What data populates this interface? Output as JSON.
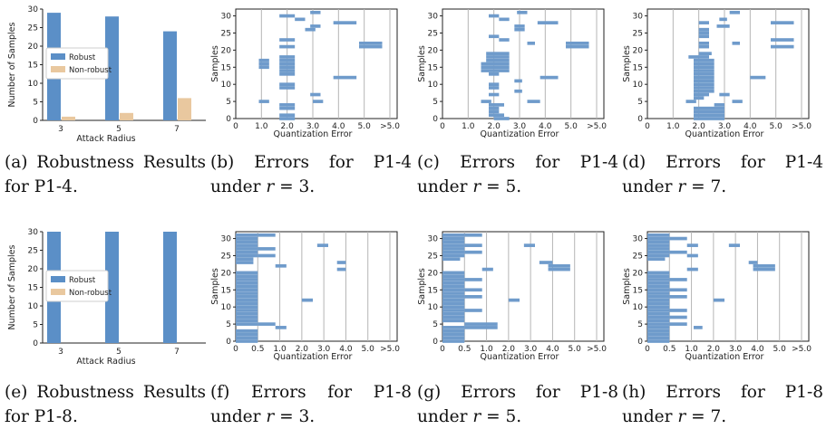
{
  "colors": {
    "robust": "#5b8fc7",
    "nonrobust": "#e9c89f",
    "error_bar": "#6f9bcb",
    "grid": "#b5b5b5",
    "axis": "#222222"
  },
  "captions": [
    {
      "main": "(a) Robustness Results for P1-4.",
      "var": "",
      "tail": ""
    },
    {
      "main": "(b) Errors for P1-4 under ",
      "var": "r",
      "tail": " = 3."
    },
    {
      "main": "(c) Errors for P1-4 under ",
      "var": "r",
      "tail": " = 5."
    },
    {
      "main": "(d) Errors for P1-4 under ",
      "var": "r",
      "tail": " = 7."
    },
    {
      "main": "(e) Robustness Results for P1-8.",
      "var": "",
      "tail": ""
    },
    {
      "main": "(f) Errors for P1-8 under ",
      "var": "r",
      "tail": " = 3."
    },
    {
      "main": "(g) Errors for P1-8 under ",
      "var": "r",
      "tail": " = 5."
    },
    {
      "main": "(h) Errors for P1-8 under ",
      "var": "r",
      "tail": " = 7."
    }
  ],
  "chart_data": [
    {
      "type": "bar",
      "ylabel": "Number of Samples",
      "xlabel": "Attack Radius",
      "categories": [
        "3",
        "5",
        "7"
      ],
      "ylim": [
        0,
        30
      ],
      "yticks": [
        0,
        5,
        10,
        15,
        20,
        25,
        30
      ],
      "legend": "center-left",
      "series": [
        {
          "name": "Robust",
          "values": [
            29,
            28,
            24
          ]
        },
        {
          "name": "Non-robust",
          "values": [
            1,
            2,
            6
          ]
        }
      ]
    },
    {
      "type": "bar",
      "orientation": "horizontal",
      "xlabel": "Quantization Error",
      "ylabel": "Samples",
      "xticks": [
        "0",
        "1.0",
        "2.0",
        "3.0",
        "4.0",
        "5.0",
        ">5.0"
      ],
      "ylim": [
        0,
        32
      ],
      "yticks": [
        0,
        5,
        10,
        15,
        20,
        25,
        30
      ],
      "segments": [
        [
          1.7,
          2.3,
          30
        ],
        [
          2.9,
          3.3,
          31
        ],
        [
          2.3,
          2.7,
          29
        ],
        [
          2.9,
          3.3,
          27
        ],
        [
          2.7,
          3.1,
          26
        ],
        [
          3.8,
          4.7,
          28
        ],
        [
          1.7,
          2.3,
          23
        ],
        [
          4.8,
          5.7,
          22
        ],
        [
          4.8,
          5.7,
          21
        ],
        [
          1.7,
          2.3,
          21
        ],
        [
          1.7,
          2.3,
          18
        ],
        [
          0.9,
          1.3,
          17
        ],
        [
          1.7,
          2.3,
          17
        ],
        [
          0.9,
          1.3,
          16
        ],
        [
          1.7,
          2.3,
          16
        ],
        [
          0.9,
          1.3,
          15
        ],
        [
          1.7,
          2.3,
          15
        ],
        [
          1.7,
          2.3,
          14
        ],
        [
          1.7,
          2.3,
          13
        ],
        [
          3.8,
          4.7,
          12
        ],
        [
          1.7,
          2.3,
          10
        ],
        [
          1.7,
          2.3,
          9
        ],
        [
          2.9,
          3.3,
          7
        ],
        [
          0.9,
          1.3,
          5
        ],
        [
          3.0,
          3.4,
          5
        ],
        [
          1.7,
          2.3,
          4
        ],
        [
          1.7,
          2.3,
          3
        ],
        [
          1.7,
          2.3,
          1
        ],
        [
          1.7,
          2.3,
          0
        ]
      ]
    },
    {
      "type": "bar",
      "orientation": "horizontal",
      "xlabel": "Quantization Error",
      "ylabel": "Samples",
      "xticks": [
        "0",
        "1.0",
        "2.0",
        "3.0",
        "4.0",
        "5.0",
        ">5.0"
      ],
      "ylim": [
        0,
        32
      ],
      "yticks": [
        0,
        5,
        10,
        15,
        20,
        25,
        30
      ],
      "segments": [
        [
          1.8,
          2.2,
          30
        ],
        [
          2.9,
          3.3,
          31
        ],
        [
          2.2,
          2.6,
          29
        ],
        [
          2.8,
          3.2,
          27
        ],
        [
          2.8,
          3.2,
          26
        ],
        [
          3.7,
          4.5,
          28
        ],
        [
          1.8,
          2.2,
          24
        ],
        [
          2.2,
          2.6,
          23
        ],
        [
          4.8,
          5.7,
          22
        ],
        [
          4.8,
          5.7,
          21
        ],
        [
          3.3,
          3.6,
          22
        ],
        [
          1.7,
          2.1,
          19
        ],
        [
          2.1,
          2.6,
          19
        ],
        [
          1.7,
          2.6,
          18
        ],
        [
          1.7,
          2.6,
          17
        ],
        [
          1.5,
          2.6,
          16
        ],
        [
          1.5,
          2.6,
          15
        ],
        [
          1.5,
          2.6,
          14
        ],
        [
          1.8,
          2.2,
          13
        ],
        [
          3.8,
          4.5,
          12
        ],
        [
          2.8,
          3.1,
          11
        ],
        [
          1.8,
          2.2,
          10
        ],
        [
          1.8,
          2.2,
          9
        ],
        [
          2.8,
          3.1,
          8
        ],
        [
          1.8,
          2.2,
          7
        ],
        [
          1.5,
          1.9,
          5
        ],
        [
          3.3,
          3.8,
          5
        ],
        [
          1.8,
          2.4,
          4
        ],
        [
          1.8,
          2.2,
          3
        ],
        [
          1.8,
          2.2,
          2
        ],
        [
          1.8,
          2.4,
          1
        ],
        [
          2.0,
          2.6,
          0
        ]
      ]
    },
    {
      "type": "bar",
      "orientation": "horizontal",
      "xlabel": "Quantization Error",
      "ylabel": "Samples",
      "xticks": [
        "0",
        "1.0",
        "2.0",
        "3.0",
        "4.0",
        "5.0",
        ">5.0"
      ],
      "ylim": [
        0,
        32
      ],
      "yticks": [
        0,
        5,
        10,
        15,
        20,
        25,
        30
      ],
      "segments": [
        [
          3.2,
          3.6,
          31
        ],
        [
          2.8,
          3.1,
          29
        ],
        [
          2.7,
          3.2,
          27
        ],
        [
          2.0,
          2.4,
          28
        ],
        [
          2.0,
          2.4,
          26
        ],
        [
          4.8,
          5.7,
          28
        ],
        [
          2.0,
          2.4,
          25
        ],
        [
          2.0,
          2.4,
          24
        ],
        [
          4.8,
          5.7,
          23
        ],
        [
          4.8,
          5.7,
          21
        ],
        [
          3.3,
          3.6,
          22
        ],
        [
          2.0,
          2.4,
          22
        ],
        [
          2.0,
          2.4,
          21
        ],
        [
          2.0,
          2.5,
          19
        ],
        [
          1.6,
          2.4,
          18
        ],
        [
          1.8,
          2.6,
          17
        ],
        [
          1.8,
          2.6,
          16
        ],
        [
          1.8,
          2.6,
          15
        ],
        [
          1.8,
          2.6,
          14
        ],
        [
          1.8,
          2.6,
          13
        ],
        [
          1.8,
          2.6,
          12
        ],
        [
          4.0,
          4.6,
          12
        ],
        [
          1.8,
          2.6,
          11
        ],
        [
          1.8,
          2.6,
          10
        ],
        [
          1.8,
          2.6,
          9
        ],
        [
          1.8,
          2.6,
          8
        ],
        [
          2.8,
          3.2,
          7
        ],
        [
          1.8,
          2.4,
          7
        ],
        [
          1.8,
          2.2,
          6
        ],
        [
          1.5,
          1.9,
          5
        ],
        [
          3.3,
          3.7,
          5
        ],
        [
          2.6,
          3.0,
          4
        ],
        [
          1.8,
          3.0,
          3
        ],
        [
          1.8,
          3.0,
          2
        ],
        [
          1.8,
          3.0,
          1
        ],
        [
          1.8,
          3.0,
          0
        ]
      ]
    },
    {
      "type": "bar",
      "ylabel": "Number of Samples",
      "xlabel": "Attack Radius",
      "categories": [
        "3",
        "5",
        "7"
      ],
      "ylim": [
        0,
        30
      ],
      "yticks": [
        0,
        5,
        10,
        15,
        20,
        25,
        30
      ],
      "legend": "center-left",
      "series": [
        {
          "name": "Robust",
          "values": [
            30,
            30,
            30
          ]
        },
        {
          "name": "Non-robust",
          "values": [
            0,
            0,
            0
          ]
        }
      ]
    },
    {
      "type": "bar",
      "orientation": "horizontal",
      "xlabel": "Quantization Error",
      "ylabel": "Samples",
      "xticks": [
        "0",
        "0.5",
        "1.0",
        "2.0",
        "3.0",
        "4.0",
        "5.0",
        ">5.0"
      ],
      "ylim": [
        0,
        32
      ],
      "yticks": [
        0,
        5,
        10,
        15,
        20,
        25,
        30
      ],
      "segments": [
        [
          0.0,
          0.5,
          31
        ],
        [
          0.0,
          0.5,
          30
        ],
        [
          0.5,
          0.9,
          31
        ],
        [
          0.0,
          0.5,
          29
        ],
        [
          0.0,
          0.5,
          28
        ],
        [
          0.0,
          0.5,
          27
        ],
        [
          0.5,
          0.9,
          27
        ],
        [
          0.0,
          0.5,
          26
        ],
        [
          0.0,
          0.5,
          25
        ],
        [
          0.5,
          0.9,
          25
        ],
        [
          2.7,
          3.2,
          28
        ],
        [
          3.6,
          4.0,
          23
        ],
        [
          3.6,
          4.0,
          21
        ],
        [
          0.0,
          0.4,
          24
        ],
        [
          0.0,
          0.4,
          23
        ],
        [
          0.9,
          1.3,
          22
        ],
        [
          0.0,
          0.5,
          20
        ],
        [
          0.0,
          0.5,
          19
        ],
        [
          0.0,
          0.5,
          18
        ],
        [
          0.0,
          0.5,
          17
        ],
        [
          0.0,
          0.5,
          16
        ],
        [
          0.0,
          0.5,
          15
        ],
        [
          0.0,
          0.5,
          14
        ],
        [
          0.0,
          0.5,
          13
        ],
        [
          0.0,
          0.5,
          12
        ],
        [
          2.0,
          2.5,
          12
        ],
        [
          0.0,
          0.5,
          11
        ],
        [
          0.0,
          0.5,
          10
        ],
        [
          0.0,
          0.5,
          9
        ],
        [
          0.0,
          0.5,
          8
        ],
        [
          0.0,
          0.5,
          7
        ],
        [
          0.0,
          0.5,
          6
        ],
        [
          0.5,
          0.9,
          5
        ],
        [
          0.0,
          0.5,
          5
        ],
        [
          0.9,
          1.3,
          4
        ],
        [
          0.0,
          0.5,
          3
        ],
        [
          0.0,
          0.5,
          2
        ],
        [
          0.0,
          0.5,
          1
        ],
        [
          0.0,
          0.5,
          0
        ]
      ]
    },
    {
      "type": "bar",
      "orientation": "horizontal",
      "xlabel": "Quantization Error",
      "ylabel": "Samples",
      "xticks": [
        "0",
        "0.5",
        "1.0",
        "2.0",
        "3.0",
        "4.0",
        "5.0",
        ">5.0"
      ],
      "ylim": [
        0,
        32
      ],
      "yticks": [
        0,
        5,
        10,
        15,
        20,
        25,
        30
      ],
      "segments": [
        [
          0.0,
          0.5,
          31
        ],
        [
          0.0,
          0.5,
          30
        ],
        [
          0.5,
          0.9,
          31
        ],
        [
          0.0,
          0.5,
          29
        ],
        [
          0.0,
          0.5,
          28
        ],
        [
          0.5,
          0.9,
          28
        ],
        [
          0.0,
          0.5,
          27
        ],
        [
          0.0,
          0.5,
          26
        ],
        [
          0.5,
          0.9,
          26
        ],
        [
          0.0,
          0.5,
          25
        ],
        [
          2.7,
          3.2,
          28
        ],
        [
          3.4,
          4.0,
          23
        ],
        [
          3.8,
          4.8,
          22
        ],
        [
          3.8,
          4.8,
          21
        ],
        [
          0.0,
          0.4,
          24
        ],
        [
          0.9,
          1.3,
          21
        ],
        [
          0.0,
          0.5,
          20
        ],
        [
          0.0,
          0.5,
          19
        ],
        [
          0.0,
          0.5,
          18
        ],
        [
          0.5,
          0.9,
          18
        ],
        [
          0.0,
          0.5,
          17
        ],
        [
          0.0,
          0.5,
          16
        ],
        [
          0.5,
          0.9,
          15
        ],
        [
          0.0,
          0.5,
          15
        ],
        [
          0.0,
          0.5,
          14
        ],
        [
          0.0,
          0.5,
          13
        ],
        [
          0.5,
          0.9,
          13
        ],
        [
          0.0,
          0.5,
          12
        ],
        [
          2.0,
          2.5,
          12
        ],
        [
          0.0,
          0.5,
          11
        ],
        [
          0.0,
          0.5,
          10
        ],
        [
          0.0,
          0.5,
          9
        ],
        [
          0.5,
          0.9,
          9
        ],
        [
          0.0,
          0.5,
          8
        ],
        [
          0.0,
          0.5,
          7
        ],
        [
          0.0,
          0.5,
          6
        ],
        [
          0.5,
          1.5,
          5
        ],
        [
          0.5,
          1.5,
          4
        ],
        [
          0.0,
          0.5,
          4
        ],
        [
          0.0,
          0.5,
          3
        ],
        [
          0.0,
          0.5,
          2
        ],
        [
          0.0,
          0.5,
          1
        ],
        [
          0.0,
          0.5,
          0
        ]
      ]
    },
    {
      "type": "bar",
      "orientation": "horizontal",
      "xlabel": "Quantization Error",
      "ylabel": "Samples",
      "xticks": [
        "0",
        "0.5",
        "1.0",
        "2.0",
        "3.0",
        "4.0",
        "5.0",
        ">5.0"
      ],
      "ylim": [
        0,
        32
      ],
      "yticks": [
        0,
        5,
        10,
        15,
        20,
        25,
        30
      ],
      "segments": [
        [
          0.0,
          0.5,
          31
        ],
        [
          0.0,
          0.5,
          30
        ],
        [
          0.5,
          0.9,
          30
        ],
        [
          0.0,
          0.5,
          29
        ],
        [
          0.0,
          0.5,
          28
        ],
        [
          0.9,
          1.3,
          28
        ],
        [
          0.0,
          0.5,
          27
        ],
        [
          0.0,
          0.5,
          26
        ],
        [
          0.5,
          0.9,
          26
        ],
        [
          0.0,
          0.5,
          25
        ],
        [
          0.9,
          1.3,
          25
        ],
        [
          2.7,
          3.2,
          28
        ],
        [
          3.6,
          4.0,
          23
        ],
        [
          3.8,
          4.8,
          22
        ],
        [
          3.8,
          4.8,
          21
        ],
        [
          0.0,
          0.4,
          24
        ],
        [
          0.9,
          1.3,
          21
        ],
        [
          0.0,
          0.5,
          20
        ],
        [
          0.0,
          0.5,
          19
        ],
        [
          0.0,
          0.5,
          18
        ],
        [
          0.5,
          0.9,
          18
        ],
        [
          0.0,
          0.5,
          17
        ],
        [
          0.0,
          0.5,
          16
        ],
        [
          0.5,
          0.9,
          15
        ],
        [
          0.0,
          0.5,
          15
        ],
        [
          0.0,
          0.5,
          14
        ],
        [
          0.0,
          0.5,
          13
        ],
        [
          0.5,
          0.9,
          13
        ],
        [
          0.0,
          0.5,
          12
        ],
        [
          2.0,
          2.5,
          12
        ],
        [
          0.0,
          0.5,
          11
        ],
        [
          0.0,
          0.5,
          10
        ],
        [
          0.5,
          0.9,
          9
        ],
        [
          0.0,
          0.5,
          9
        ],
        [
          0.0,
          0.5,
          8
        ],
        [
          0.0,
          0.5,
          7
        ],
        [
          0.5,
          0.9,
          7
        ],
        [
          0.0,
          0.5,
          6
        ],
        [
          0.5,
          0.9,
          5
        ],
        [
          0.0,
          0.5,
          5
        ],
        [
          0.0,
          0.5,
          4
        ],
        [
          1.1,
          1.5,
          4
        ],
        [
          0.0,
          0.5,
          3
        ],
        [
          0.0,
          0.5,
          2
        ],
        [
          0.0,
          0.5,
          1
        ],
        [
          0.0,
          0.5,
          0
        ]
      ]
    }
  ]
}
